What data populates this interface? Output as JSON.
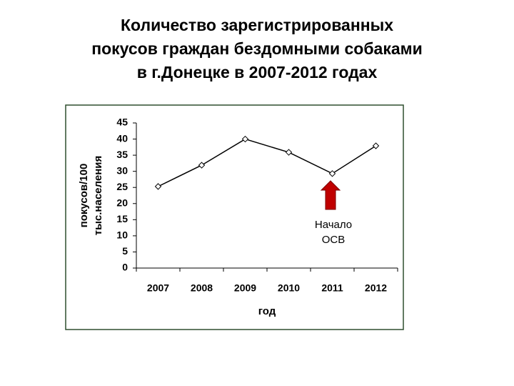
{
  "chart_data": {
    "type": "line",
    "title": [
      "Количество зарегистрированных",
      "покусов граждан бездомными собаками",
      "в г.Донецке в 2007-2012 годах"
    ],
    "y_label": [
      "покусов/100",
      "тыс.населения"
    ],
    "x_label": "год",
    "categories": [
      "2007",
      "2008",
      "2009",
      "2010",
      "2011",
      "2012"
    ],
    "values": [
      25.3,
      31.9,
      40,
      35.9,
      29.3,
      37.9
    ],
    "color": "#000000",
    "ylim": [
      0,
      45
    ],
    "yticks": [
      0,
      5,
      10,
      15,
      20,
      25,
      30,
      35,
      40,
      45
    ],
    "grid": false,
    "annotation": [
      "Начало",
      "ОСВ"
    ]
  }
}
